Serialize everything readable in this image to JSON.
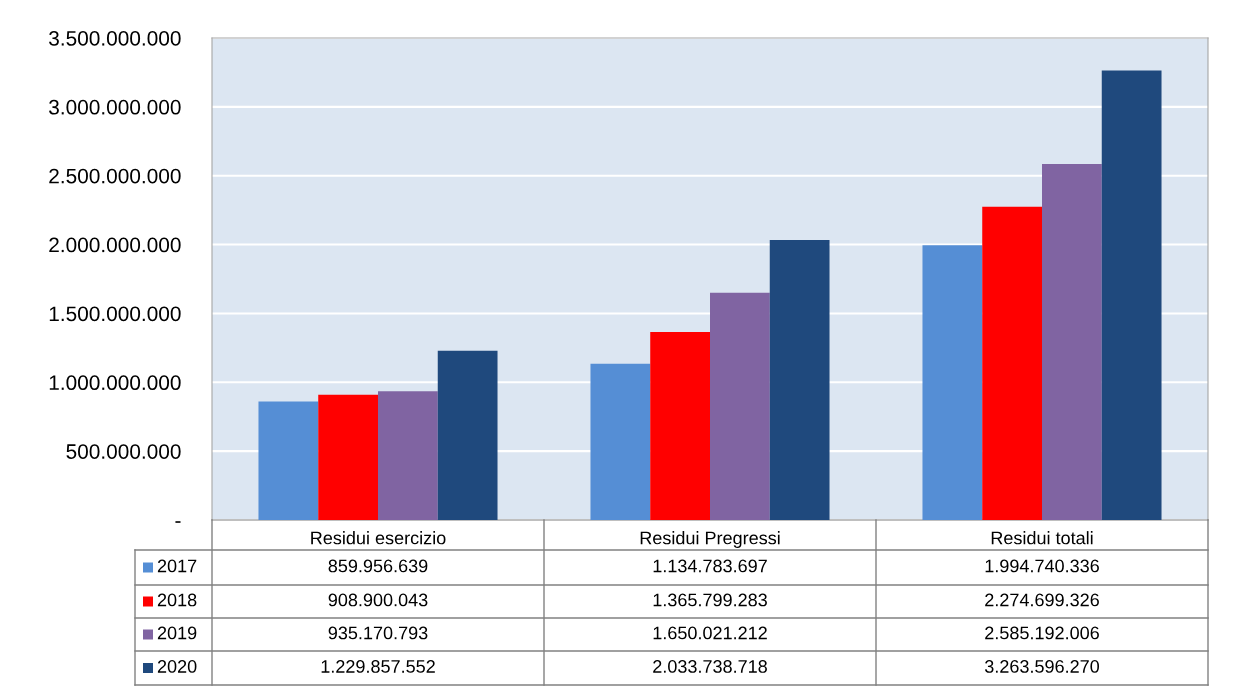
{
  "chart_data": {
    "type": "bar",
    "categories": [
      "Residui esercizio",
      "Residui Pregressi",
      "Residui totali"
    ],
    "series": [
      {
        "name": "2017",
        "color": "#558ed5",
        "values": [
          859956639,
          1134783697,
          1994740336
        ],
        "value_labels": [
          "859.956.639",
          "1.134.783.697",
          "1.994.740.336"
        ]
      },
      {
        "name": "2018",
        "color": "#ff0000",
        "values": [
          908900043,
          1365799283,
          2274699326
        ],
        "value_labels": [
          "908.900.043",
          "1.365.799.283",
          "2.274.699.326"
        ]
      },
      {
        "name": "2019",
        "color": "#8064a2",
        "values": [
          935170793,
          1650021212,
          2585192006
        ],
        "value_labels": [
          "935.170.793",
          "1.650.021.212",
          "2.585.192.006"
        ]
      },
      {
        "name": "2020",
        "color": "#1f497d",
        "values": [
          1229857552,
          2033738718,
          3263596270
        ],
        "value_labels": [
          "1.229.857.552",
          "2.033.738.718",
          "3.263.596.270"
        ]
      }
    ],
    "ylim": [
      0,
      3500000000
    ],
    "yticks": [
      {
        "value": 0,
        "label": "-"
      },
      {
        "value": 500000000,
        "label": "500.000.000"
      },
      {
        "value": 1000000000,
        "label": "1.000.000.000"
      },
      {
        "value": 1500000000,
        "label": "1.500.000.000"
      },
      {
        "value": 2000000000,
        "label": "2.000.000.000"
      },
      {
        "value": 2500000000,
        "label": "2.500.000.000"
      },
      {
        "value": 3000000000,
        "label": "3.000.000.000"
      },
      {
        "value": 3500000000,
        "label": "3.500.000.000"
      }
    ],
    "grid": "y",
    "legend": "bottom"
  }
}
